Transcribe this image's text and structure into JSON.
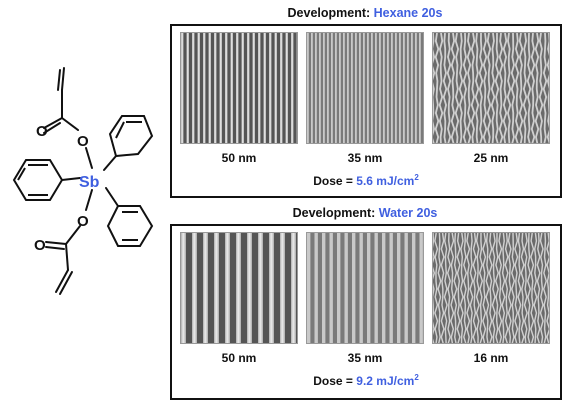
{
  "molecule": {
    "center_atom": "Sb",
    "oxygen_label": "O"
  },
  "panels": [
    {
      "title_prefix": "Development:",
      "developer": "Hexane 20s",
      "images": [
        {
          "label": "50 nm",
          "pattern": "lines-coarse"
        },
        {
          "label": "35 nm",
          "pattern": "lines-fine"
        },
        {
          "label": "25 nm",
          "pattern": "lines-wavy"
        }
      ],
      "dose_prefix": "Dose =",
      "dose_value": "5.6 mJ/cm",
      "dose_exp": "2"
    },
    {
      "title_prefix": "Development:",
      "developer": "Water 20s",
      "images": [
        {
          "label": "50 nm",
          "pattern": "lines-coarse"
        },
        {
          "label": "35 nm",
          "pattern": "lines-fine"
        },
        {
          "label": "16 nm",
          "pattern": "lines-wavy"
        }
      ],
      "dose_prefix": "Dose =",
      "dose_value": "9.2 mJ/cm",
      "dose_exp": "2"
    }
  ],
  "colors": {
    "accent": "#3f5fe0",
    "frame": "#111111"
  }
}
